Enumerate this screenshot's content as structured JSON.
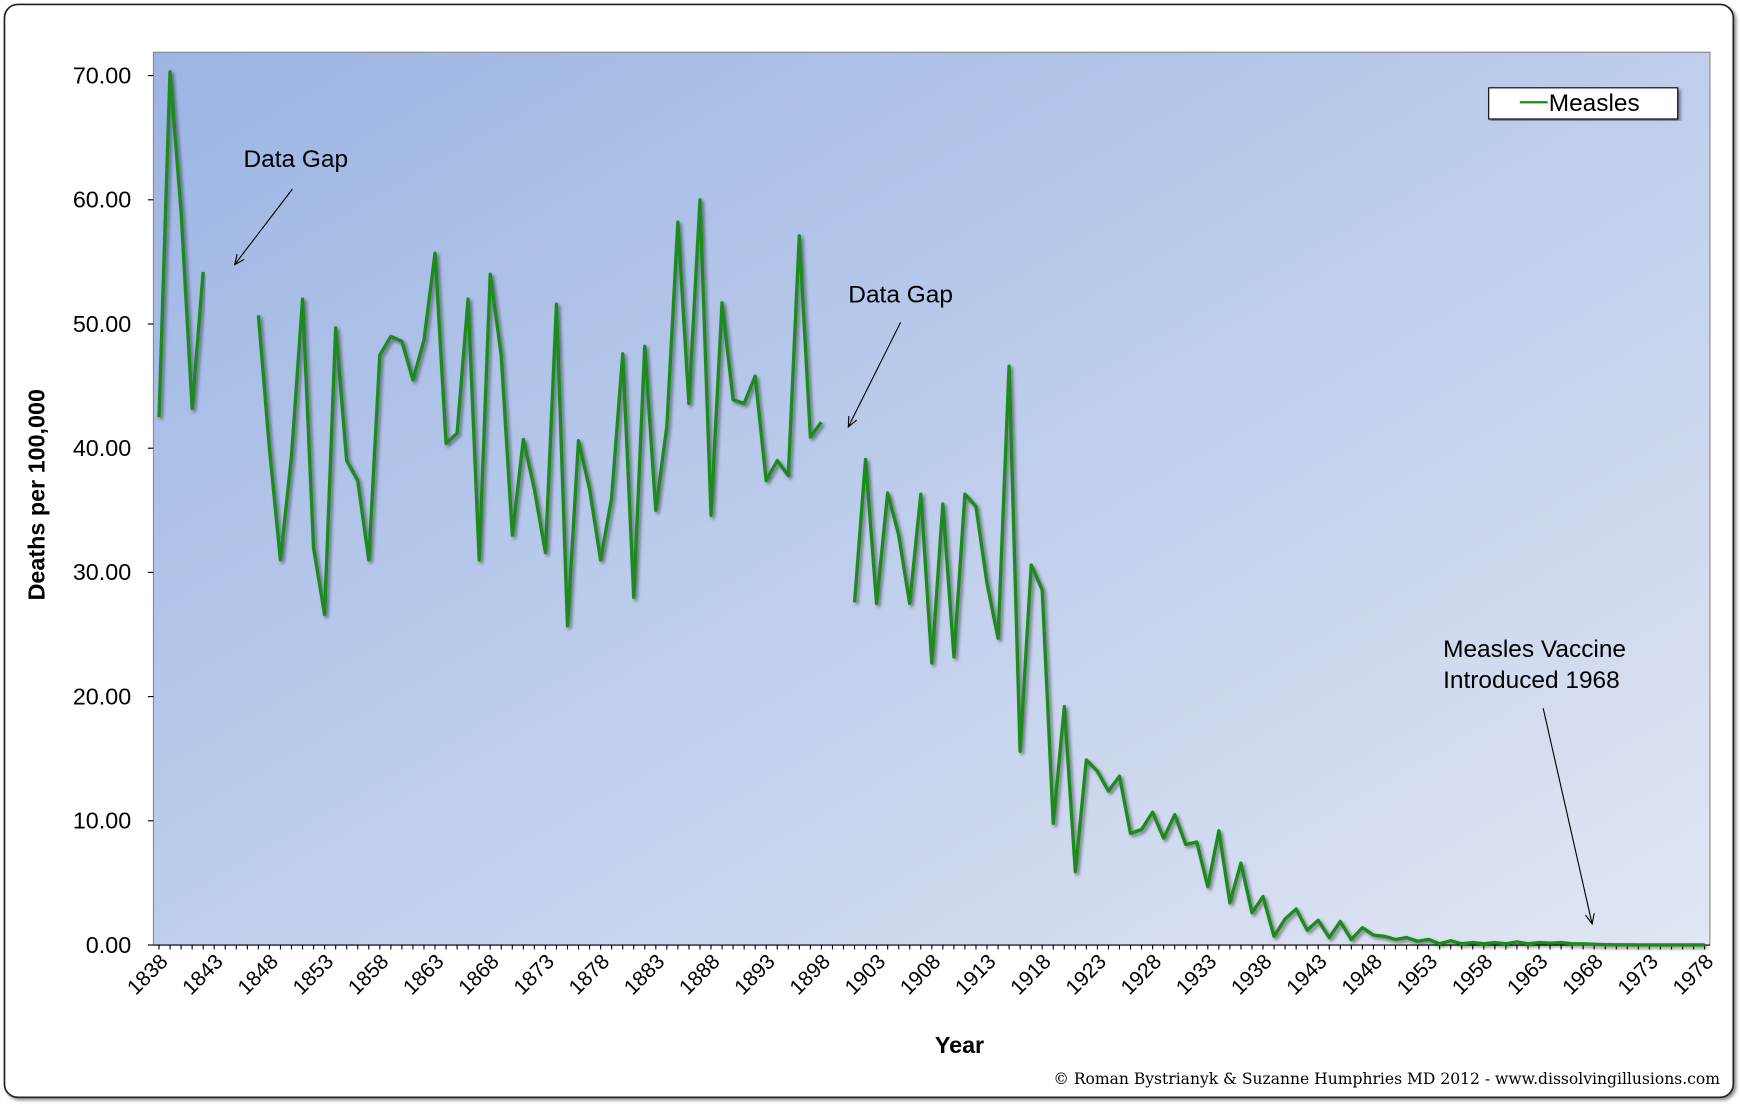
{
  "chart_data": {
    "type": "line",
    "xlabel": "Year",
    "ylabel": "Deaths per 100,000",
    "ylim": [
      0,
      70
    ],
    "yticks": [
      "0.00",
      "10.00",
      "20.00",
      "30.00",
      "40.00",
      "50.00",
      "60.00",
      "70.00"
    ],
    "xlim": [
      1838,
      1978
    ],
    "xticks": [
      1838,
      1843,
      1848,
      1853,
      1858,
      1863,
      1868,
      1873,
      1878,
      1883,
      1888,
      1893,
      1898,
      1903,
      1908,
      1913,
      1918,
      1923,
      1928,
      1933,
      1938,
      1943,
      1948,
      1953,
      1958,
      1963,
      1968,
      1973,
      1978
    ],
    "grid": false,
    "legend_position": "top-right",
    "series": [
      {
        "name": "Measles",
        "color": "#1a8a1a",
        "x_start": 1838,
        "values": [
          42.5,
          70.3,
          59.0,
          43.2,
          54.2,
          null,
          null,
          null,
          null,
          50.7,
          40.0,
          31.0,
          39.4,
          52.0,
          32.0,
          26.6,
          49.7,
          39.0,
          37.4,
          31.0,
          47.5,
          49.0,
          48.6,
          45.5,
          48.7,
          55.7,
          40.4,
          41.2,
          52.0,
          31.0,
          54.0,
          47.5,
          33.0,
          40.7,
          36.7,
          31.6,
          51.6,
          25.7,
          40.6,
          36.7,
          31.0,
          36.0,
          47.6,
          28.0,
          48.2,
          35.0,
          41.8,
          58.2,
          43.6,
          60.0,
          34.6,
          51.7,
          43.9,
          43.6,
          45.8,
          37.4,
          39.0,
          37.8,
          57.1,
          40.9,
          42.1,
          null,
          null,
          27.6,
          39.1,
          27.5,
          36.4,
          33.0,
          27.5,
          36.3,
          22.7,
          35.5,
          23.2,
          36.3,
          35.3,
          29.1,
          24.7,
          46.6,
          15.6,
          30.6,
          28.6,
          9.8,
          19.2,
          5.9,
          14.9,
          14.0,
          12.4,
          13.6,
          9.0,
          9.3,
          10.7,
          8.6,
          10.5,
          8.1,
          8.3,
          4.7,
          9.2,
          3.4,
          6.6,
          2.6,
          3.9,
          0.7,
          2.1,
          2.9,
          1.2,
          2.0,
          0.6,
          1.9,
          0.45,
          1.4,
          0.8,
          0.7,
          0.45,
          0.6,
          0.3,
          0.45,
          0.1,
          0.35,
          0.1,
          0.2,
          0.1,
          0.2,
          0.1,
          0.25,
          0.1,
          0.2,
          0.15,
          0.2,
          0.1,
          0.1,
          0.05,
          0.03,
          0.02,
          0.02,
          0.01,
          0.01,
          0.01,
          0.01,
          0.01,
          0.01,
          0.01
        ]
      }
    ],
    "annotations": [
      {
        "text": "Data Gap"
      },
      {
        "text": "Data Gap"
      },
      {
        "text_lines": [
          "Measles Vaccine",
          "Introduced 1968"
        ]
      }
    ]
  },
  "credit": "© Roman Bystrianyk & Suzanne Humphries MD 2012 - www.dissolvingillusions.com",
  "colors": {
    "plot_bg_start": "#9cb5e4",
    "plot_bg_end": "#e0e6f3",
    "line": "#1a8a1a"
  }
}
